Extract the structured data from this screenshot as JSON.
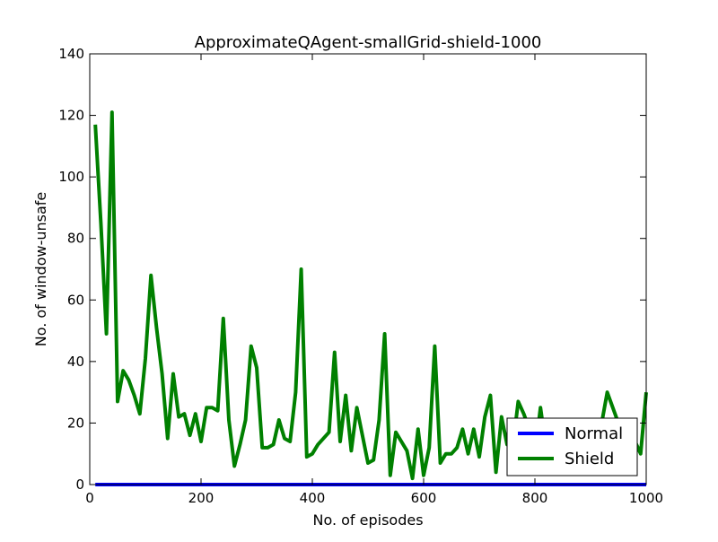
{
  "chart_data": {
    "type": "line",
    "title": "ApproximateQAgent-smallGrid-shield-1000",
    "xlabel": "No. of episodes",
    "ylabel": "No. of window-unsafe",
    "xlim": [
      0,
      1000
    ],
    "ylim": [
      0,
      140
    ],
    "xticks": [
      0,
      200,
      400,
      600,
      800,
      1000
    ],
    "yticks": [
      0,
      20,
      40,
      60,
      80,
      100,
      120,
      140
    ],
    "grid": false,
    "legend_position": "lower-right",
    "series": [
      {
        "name": "Normal",
        "color": "#0000ff",
        "x": [
          10,
          1000
        ],
        "y": [
          0,
          0
        ]
      },
      {
        "name": "Shield",
        "color": "#008000",
        "x": [
          10,
          20,
          30,
          40,
          50,
          60,
          70,
          80,
          90,
          100,
          110,
          120,
          130,
          140,
          150,
          160,
          170,
          180,
          190,
          200,
          210,
          220,
          230,
          240,
          250,
          260,
          270,
          280,
          290,
          300,
          310,
          320,
          330,
          340,
          350,
          360,
          370,
          380,
          390,
          400,
          410,
          420,
          430,
          440,
          450,
          460,
          470,
          480,
          490,
          500,
          510,
          520,
          530,
          540,
          550,
          560,
          570,
          580,
          590,
          600,
          610,
          620,
          630,
          640,
          650,
          660,
          670,
          680,
          690,
          700,
          710,
          720,
          730,
          740,
          750,
          760,
          770,
          780,
          790,
          800,
          810,
          820,
          830,
          840,
          850,
          860,
          870,
          880,
          890,
          900,
          910,
          920,
          930,
          940,
          950,
          960,
          970,
          980,
          990,
          1000
        ],
        "y": [
          117,
          85,
          49,
          121,
          27,
          37,
          34,
          29,
          23,
          41,
          68,
          51,
          36,
          15,
          36,
          22,
          23,
          16,
          23,
          14,
          25,
          25,
          24,
          54,
          21,
          6,
          13,
          21,
          45,
          38,
          12,
          12,
          13,
          21,
          15,
          14,
          30,
          70,
          9,
          10,
          13,
          15,
          17,
          43,
          14,
          29,
          11,
          25,
          16,
          7,
          8,
          21,
          49,
          3,
          17,
          14,
          11,
          2,
          18,
          3,
          12,
          45,
          7,
          10,
          10,
          12,
          18,
          10,
          18,
          9,
          22,
          29,
          4,
          22,
          13,
          12,
          27,
          23,
          18,
          10,
          25,
          12,
          12,
          12,
          13,
          15,
          16,
          18,
          20,
          18,
          13,
          20,
          30,
          25,
          20,
          16,
          15,
          14,
          10,
          30
        ]
      }
    ]
  }
}
